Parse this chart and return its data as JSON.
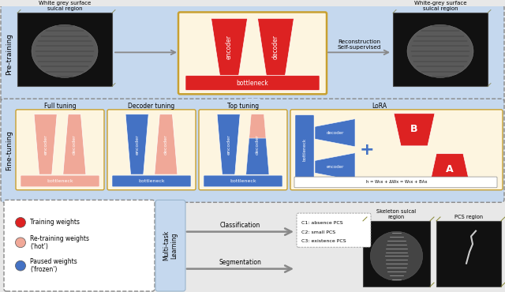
{
  "bg": "#e8e8e8",
  "pretrain_bg": "#d0dff0",
  "ft_bg": "#d0dff0",
  "cream": "#fdf5e0",
  "red": "#dd2222",
  "salmon": "#f0a898",
  "blue": "#4472c4",
  "light_blue": "#c5d8ee",
  "black_bg": "#111111",
  "dark_gray_bg": "#1a1a1a",
  "white": "#ffffff",
  "gray": "#888888",
  "gold": "#c8a030",
  "brain_title1": "White grey surface\nsulcal region",
  "brain_title2": "White-grey surface\nsulcal region",
  "reconstruction": "Reconstruction\nSelf-supervised",
  "pre_training_label": "Pre-training",
  "fine_tuning_label": "Fine-tuning",
  "full_tuning": "Full tuning",
  "decoder_tuning": "Decoder tuning",
  "top_tuning": "Top tuning",
  "lora": "LoRA",
  "formula": "h = W₀x + ΔWx = W₀x + BAx",
  "training_weights": "Training weights",
  "retraining_weights": "Re-training weights\n('hot')",
  "paused_weights": "Paused weights\n('frozen')",
  "multitask": "Multi-task\nLearning",
  "classification": "Classification",
  "segmentation": "Segmentation",
  "c1": "C1: absence PCS",
  "c2": "C2: small PCS",
  "c3": "C3: existence PCS",
  "skeleton": "Skeleton sulcal\nregion",
  "pcs": "PCS region"
}
